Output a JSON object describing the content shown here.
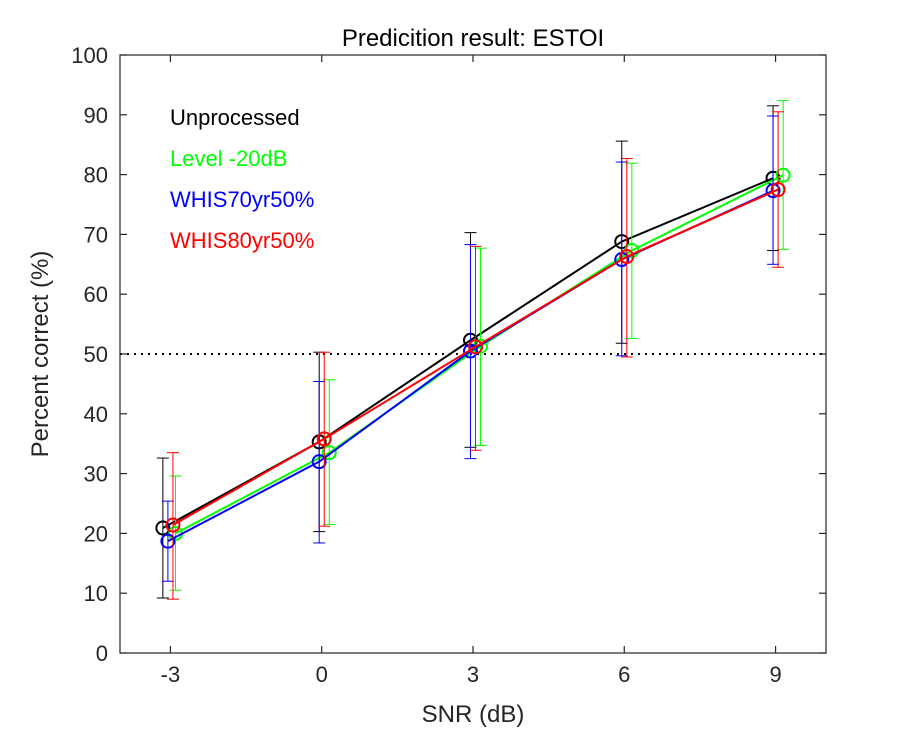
{
  "chart_data": {
    "type": "line",
    "title": "Predicition result: ESTOI",
    "xlabel": "SNR (dB)",
    "ylabel": "Percent correct (%)",
    "xlim": [
      -4,
      10
    ],
    "ylim": [
      0,
      100
    ],
    "xticks": [
      -3,
      0,
      3,
      6,
      9
    ],
    "xtick_labels": [
      "-3",
      "0",
      "3",
      "6",
      "9"
    ],
    "yticks": [
      0,
      10,
      20,
      30,
      40,
      50,
      60,
      70,
      80,
      90,
      100
    ],
    "ytick_labels": [
      "0",
      "10",
      "20",
      "30",
      "40",
      "50",
      "60",
      "70",
      "80",
      "90",
      "100"
    ],
    "reference_line": {
      "y": 50,
      "style": "dotted",
      "color": "#000000"
    },
    "legend_position": "top-left",
    "series": [
      {
        "name": "Unprocessed",
        "color": "#000000",
        "x": [
          -3.15,
          -0.05,
          2.95,
          5.95,
          8.95
        ],
        "y": [
          20.9,
          35.3,
          52.3,
          68.8,
          79.4
        ],
        "err_low": [
          9.2,
          20.3,
          34.4,
          51.8,
          67.3
        ],
        "err_high": [
          32.6,
          50.3,
          70.3,
          85.6,
          91.5
        ]
      },
      {
        "name": "Level -20dB",
        "color": "#00ff00",
        "x": [
          -2.9,
          0.15,
          3.15,
          6.15,
          9.15
        ],
        "y": [
          20.0,
          33.5,
          51.3,
          67.3,
          79.9
        ],
        "err_low": [
          10.5,
          21.5,
          34.7,
          52.6,
          67.5
        ],
        "err_high": [
          29.6,
          45.7,
          67.7,
          81.9,
          92.4
        ]
      },
      {
        "name": "WHIS70yr50%",
        "color": "#0000ff",
        "x": [
          -3.05,
          -0.05,
          2.95,
          5.95,
          8.95
        ],
        "y": [
          18.7,
          32.0,
          50.5,
          65.8,
          77.3
        ],
        "err_low": [
          12.0,
          18.4,
          32.5,
          49.7,
          65.0
        ],
        "err_high": [
          25.4,
          45.4,
          68.3,
          82.1,
          89.8
        ]
      },
      {
        "name": "WHIS80yr50%",
        "color": "#ff0000",
        "x": [
          -2.95,
          0.05,
          3.05,
          6.05,
          9.05
        ],
        "y": [
          21.4,
          35.8,
          51.2,
          66.3,
          77.5
        ],
        "err_low": [
          9.0,
          21.2,
          33.9,
          49.5,
          64.5
        ],
        "err_high": [
          33.5,
          50.3,
          68.0,
          82.7,
          90.5
        ]
      }
    ]
  }
}
